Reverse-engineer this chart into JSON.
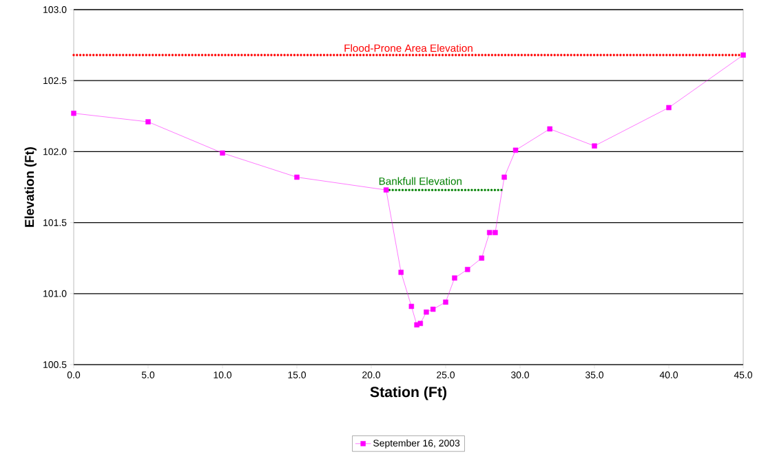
{
  "chart_data": {
    "type": "line",
    "xlabel": "Station (Ft)",
    "ylabel": "Elevation (Ft)",
    "xlim": [
      0,
      45
    ],
    "ylim": [
      100.5,
      103.0
    ],
    "xticks": [
      {
        "value": 0,
        "label": "0.0"
      },
      {
        "value": 5,
        "label": "5.0"
      },
      {
        "value": 10,
        "label": "10.0"
      },
      {
        "value": 15,
        "label": "15.0"
      },
      {
        "value": 20,
        "label": "20.0"
      },
      {
        "value": 25,
        "label": "25.0"
      },
      {
        "value": 30,
        "label": "30.0"
      },
      {
        "value": 35,
        "label": "35.0"
      },
      {
        "value": 40,
        "label": "40.0"
      },
      {
        "value": 45,
        "label": "45.0"
      }
    ],
    "yticks": [
      {
        "value": 100.5,
        "label": "100.5"
      },
      {
        "value": 101.0,
        "label": "101.0"
      },
      {
        "value": 101.5,
        "label": "101.5"
      },
      {
        "value": 102.0,
        "label": "102.0"
      },
      {
        "value": 102.5,
        "label": "102.5"
      },
      {
        "value": 103.0,
        "label": "103.0"
      }
    ],
    "grid": "y",
    "legend": "bottom",
    "marker": "square",
    "line_style": "solid",
    "series": [
      {
        "name": "September 16, 2003",
        "color": "#ff00ff",
        "x": [
          0,
          5,
          10,
          15,
          21,
          22,
          22.7,
          23.06,
          23.3,
          23.7,
          24.15,
          25,
          25.6,
          26.47,
          27.42,
          27.95,
          28.33,
          28.94,
          29.7,
          32,
          35,
          40,
          45
        ],
        "values": [
          102.27,
          102.21,
          101.99,
          101.82,
          101.73,
          101.15,
          100.91,
          100.78,
          100.79,
          100.87,
          100.89,
          100.94,
          101.11,
          101.17,
          101.25,
          101.43,
          101.43,
          101.82,
          102.01,
          102.16,
          102.04,
          102.31,
          102.68
        ]
      },
      {
        "color": "#008000",
        "x": [
          21,
          28.9
        ],
        "values": [
          101.73,
          101.73
        ],
        "marker": "none",
        "line_style": "dotted"
      }
    ],
    "ref_lines": [
      {
        "axis": "y",
        "value": 102.68,
        "label": "Flood-Prone Area Elevation",
        "color": "#ff0000",
        "line_style": "dotted"
      }
    ],
    "annotations": [
      {
        "text": "Bankfull Elevation",
        "x": 23.3,
        "y": 101.73
      }
    ]
  }
}
